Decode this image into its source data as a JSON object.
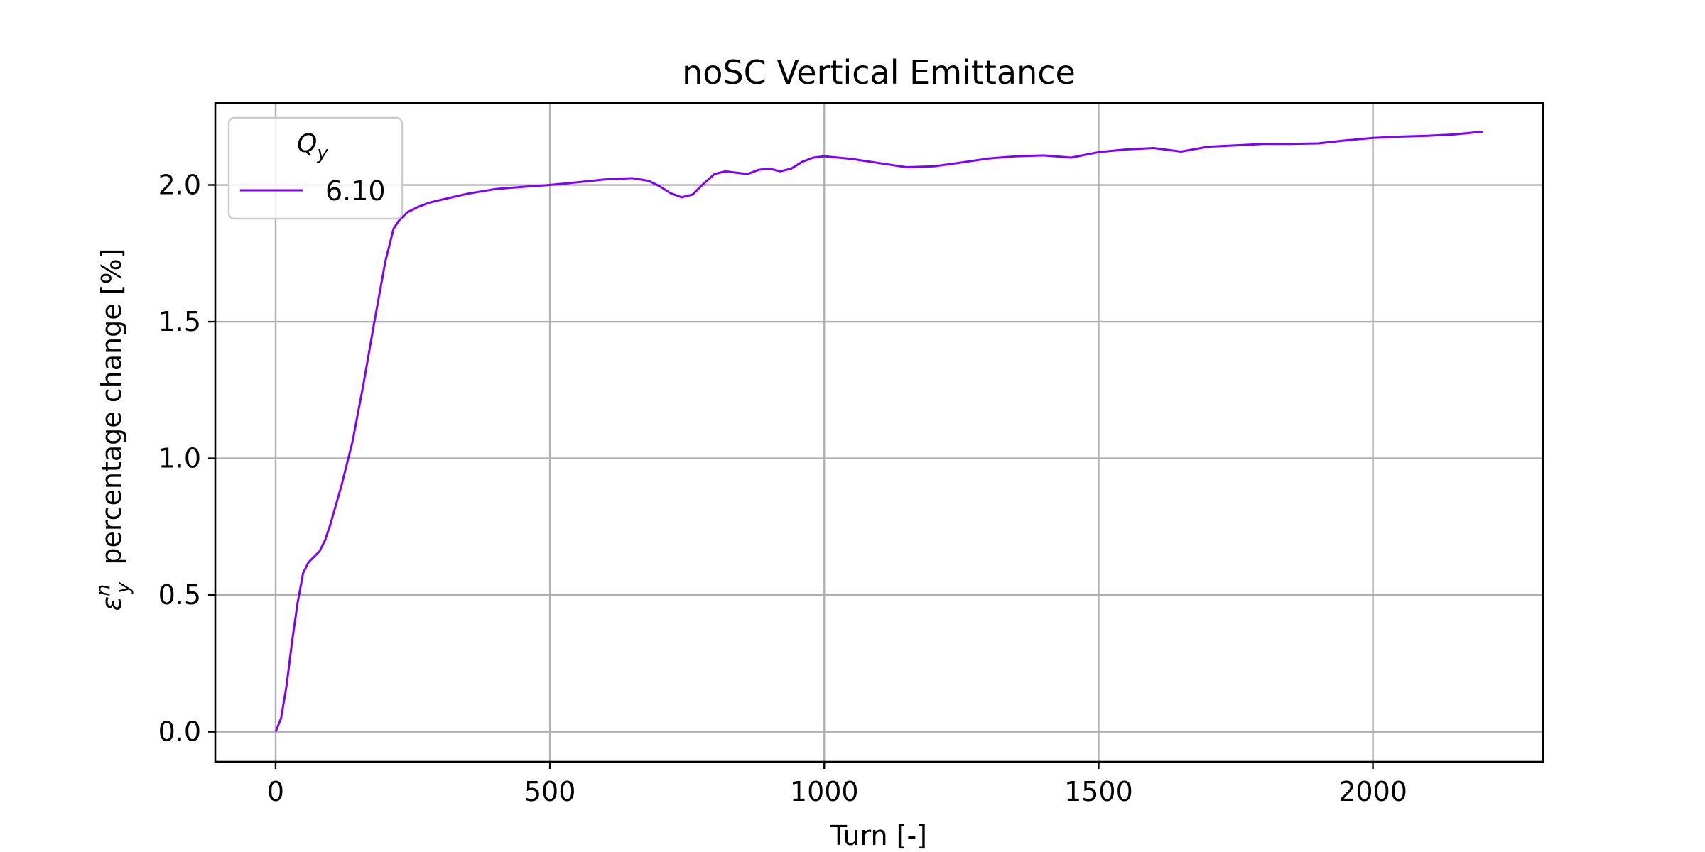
{
  "chart_data": {
    "type": "line",
    "title": "noSC Vertical Emittance",
    "xlabel": "Turn [-]",
    "ylabel": "percentage change [%]",
    "ylabel_symbol": "ε",
    "ylabel_sub": "y",
    "ylabel_sup": "n",
    "xlim": [
      -110,
      2310
    ],
    "ylim": [
      -0.11,
      2.3
    ],
    "xticks": [
      0,
      500,
      1000,
      1500,
      2000
    ],
    "xtick_labels": [
      "0",
      "500",
      "1000",
      "1500",
      "2000"
    ],
    "yticks": [
      0.0,
      0.5,
      1.0,
      1.5,
      2.0
    ],
    "ytick_labels": [
      "0.0",
      "0.5",
      "1.0",
      "1.5",
      "2.0"
    ],
    "grid": true,
    "legend": {
      "title_symbol": "Q",
      "title_sub": "y",
      "placement": "top-left"
    },
    "series": [
      {
        "name": "6.10",
        "color": "#7f00ff",
        "x": [
          0,
          10,
          20,
          30,
          40,
          50,
          60,
          70,
          80,
          90,
          100,
          120,
          140,
          160,
          180,
          200,
          215,
          225,
          240,
          260,
          280,
          300,
          350,
          400,
          450,
          500,
          550,
          600,
          650,
          680,
          700,
          720,
          740,
          760,
          780,
          800,
          820,
          840,
          860,
          880,
          900,
          920,
          940,
          960,
          980,
          1000,
          1050,
          1100,
          1150,
          1200,
          1250,
          1300,
          1350,
          1400,
          1450,
          1500,
          1550,
          1600,
          1650,
          1700,
          1750,
          1800,
          1850,
          1900,
          1950,
          2000,
          2050,
          2100,
          2150,
          2200
        ],
        "y": [
          0.0,
          0.05,
          0.17,
          0.33,
          0.47,
          0.58,
          0.62,
          0.64,
          0.66,
          0.7,
          0.76,
          0.9,
          1.06,
          1.27,
          1.5,
          1.72,
          1.84,
          1.87,
          1.9,
          1.92,
          1.935,
          1.945,
          1.968,
          1.985,
          1.993,
          2.0,
          2.01,
          2.02,
          2.025,
          2.015,
          1.995,
          1.97,
          1.955,
          1.965,
          2.005,
          2.04,
          2.05,
          2.045,
          2.04,
          2.055,
          2.06,
          2.05,
          2.06,
          2.085,
          2.1,
          2.105,
          2.095,
          2.08,
          2.065,
          2.068,
          2.082,
          2.097,
          2.105,
          2.108,
          2.1,
          2.12,
          2.13,
          2.135,
          2.122,
          2.14,
          2.145,
          2.15,
          2.15,
          2.152,
          2.163,
          2.172,
          2.177,
          2.18,
          2.185,
          2.195
        ]
      }
    ]
  }
}
